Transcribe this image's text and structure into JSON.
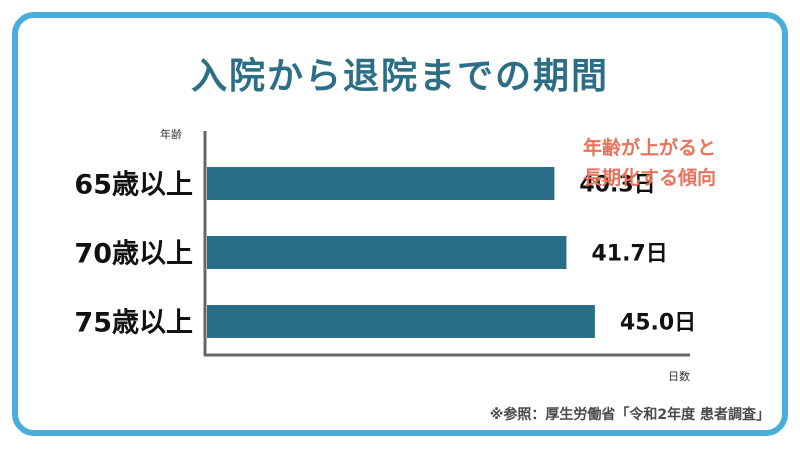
{
  "title": "入院から退院までの期間",
  "note": [
    "年齢が上がると",
    "長期化する傾向"
  ],
  "source": "※参照：厚生労働省「令和2年度 患者調査」",
  "colors": {
    "frame": "#4aaedb",
    "title": "#2b6e86",
    "bar": "#2a6d86",
    "note": "#e8735a"
  },
  "chart_data": {
    "type": "bar",
    "orientation": "horizontal",
    "category_axis_label": "年齢",
    "value_axis_label": "日数",
    "categories": [
      "65歳以上",
      "70歳以上",
      "75歳以上"
    ],
    "values": [
      40.3,
      41.7,
      45.0
    ],
    "value_labels": [
      "40.3日",
      "41.7日",
      "45.0日"
    ],
    "xlim": [
      0,
      50
    ],
    "grid": false,
    "legend": "none"
  }
}
